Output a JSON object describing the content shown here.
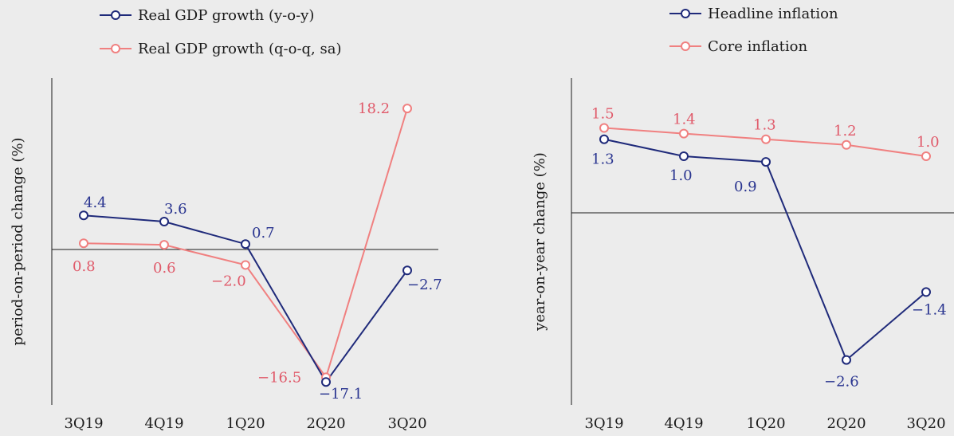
{
  "chart_data": [
    {
      "type": "line",
      "categories": [
        "3Q19",
        "4Q19",
        "1Q20",
        "2Q20",
        "3Q20"
      ],
      "ylabel": "period-on-period change (%)",
      "ylim": [
        -20,
        20
      ],
      "legend": "top-left",
      "series": [
        {
          "name": "Real GDP growth (y-o-y)",
          "color": "#1f2a7a",
          "values": [
            4.4,
            3.6,
            0.7,
            -17.1,
            -2.7
          ],
          "labels": [
            "4.4",
            "3.6",
            "0.7",
            "−17.1",
            "−2.7"
          ]
        },
        {
          "name": "Real GDP growth (q-o-q, sa)",
          "color": "#f08080",
          "values": [
            0.8,
            0.6,
            -2.0,
            -16.5,
            18.2
          ],
          "labels": [
            "0.8",
            "0.6",
            "−2.0",
            "−16.5",
            "18.2"
          ]
        }
      ]
    },
    {
      "type": "line",
      "categories": [
        "3Q19",
        "4Q19",
        "1Q20",
        "2Q20",
        "3Q20"
      ],
      "ylabel": "year-on-year change (%)",
      "ylim": [
        -3.5,
        2.2
      ],
      "legend": "top-center",
      "series": [
        {
          "name": "Headline inflation",
          "color": "#1f2a7a",
          "values": [
            1.3,
            1.0,
            0.9,
            -2.6,
            -1.4
          ],
          "labels": [
            "1.3",
            "1.0",
            "0.9",
            "−2.6",
            "−1.4"
          ]
        },
        {
          "name": "Core inflation",
          "color": "#f08080",
          "values": [
            1.5,
            1.4,
            1.3,
            1.2,
            1.0
          ],
          "labels": [
            "1.5",
            "1.4",
            "1.3",
            "1.2",
            "1.0"
          ]
        }
      ]
    }
  ]
}
